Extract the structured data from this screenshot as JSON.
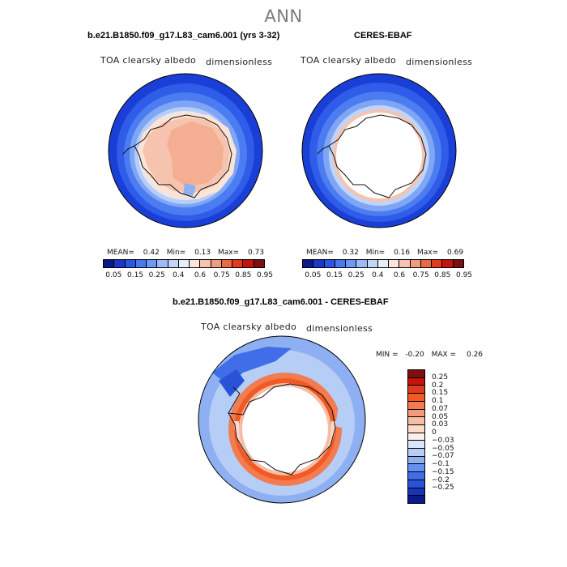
{
  "suptitle": "ANN",
  "panel1": {
    "title": "b.e21.B1850.f09_g17.L83_cam6.001 (yrs 3-32)",
    "variable": "TOA clearsky albedo",
    "units": "dimensionless",
    "mean_label": "MEAN=",
    "mean": "0.42",
    "min_label": "Min=",
    "min": "0.13",
    "max_label": "Max=",
    "max": "0.73"
  },
  "panel2": {
    "title": "CERES-EBAF",
    "variable": "TOA clearsky albedo",
    "units": "dimensionless",
    "mean_label": "MEAN=",
    "mean": "0.32",
    "min_label": "Min=",
    "min": "0.16",
    "max_label": "Max=",
    "max": "0.69"
  },
  "abs_colorbar": {
    "colors": [
      "#0a1a8c",
      "#1a37c8",
      "#2a55e6",
      "#4a78f2",
      "#6d98f5",
      "#9dbaf7",
      "#c4d6f7",
      "#e6eefa",
      "#fbe4dc",
      "#f6c3ae",
      "#f09c80",
      "#e96a48",
      "#e23a1e",
      "#c3150c",
      "#7d0f0f"
    ],
    "ticks": [
      "0.05",
      "0.15",
      "0.25",
      "0.4",
      "0.6",
      "0.75",
      "0.85",
      "0.95"
    ]
  },
  "diff_panel": {
    "title": "b.e21.B1850.f09_g17.L83_cam6.001 - CERES-EBAF",
    "variable": "TOA clearsky albedo",
    "units": "dimensionless",
    "min_label": "MIN =",
    "min": "-0.20",
    "max_label": "MAX =",
    "max": "0.26"
  },
  "diff_colorbar": {
    "colors": [
      "#7d0f0f",
      "#c3150c",
      "#e23a1e",
      "#f15a24",
      "#f27c50",
      "#f29b7a",
      "#f6bda4",
      "#fbdcca",
      "#fdf0e8",
      "#d9e5f9",
      "#b6cdf6",
      "#8eb0f2",
      "#668ff0",
      "#3f6ee8",
      "#2a52d8",
      "#1833b8",
      "#0a1a8c"
    ],
    "ticks": [
      "0.25",
      "0.2",
      "0.15",
      "0.1",
      "0.07",
      "0.05",
      "0.03",
      "0",
      "−0.03",
      "−0.05",
      "−0.07",
      "−0.1",
      "−0.15",
      "−0.2",
      "−0.25"
    ]
  }
}
